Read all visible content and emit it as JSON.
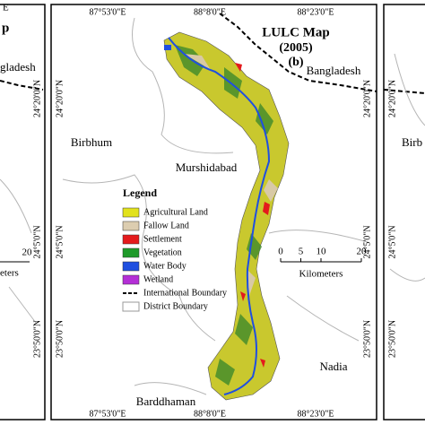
{
  "left_panel": {
    "top_lon": "E",
    "title_fragment": "p",
    "country_fragment": "gladesh",
    "lat_labels": [
      "24°20'0\"N",
      "24°5'0\"N",
      "23°50'0\"N"
    ],
    "scale_number": "20",
    "scale_unit_fragment": "eters"
  },
  "main_map": {
    "title": "LULC Map",
    "year": "(2005)",
    "panel": "(b)",
    "top_lon": [
      "87°53'0\"E",
      "88°8'0\"E",
      "88°23'0\"E"
    ],
    "bottom_lon": [
      "87°53'0\"E",
      "88°8'0\"E",
      "88°23'0\"E"
    ],
    "left_lat": [
      "24°20'0\"N",
      "24°5'0\"N",
      "23°50'0\"N"
    ],
    "right_lat": [
      "24°20'0\"N",
      "24°5'0\"N",
      "23°50'0\"N"
    ],
    "places": {
      "bangladesh": "Bangladesh",
      "birbhum": "Birbhum",
      "murshidabad": "Murshidabad",
      "nadia": "Nadia",
      "barddhaman": "Barddhaman"
    },
    "legend": {
      "title": "Legend",
      "items": [
        {
          "label": "Agricultural Land",
          "color": "#e2e21c"
        },
        {
          "label": "Fallow Land",
          "color": "#dccdb0"
        },
        {
          "label": "Settlement",
          "color": "#e41a1c"
        },
        {
          "label": "Vegetation",
          "color": "#1f9a2a"
        },
        {
          "label": "Water Body",
          "color": "#1f4fe0"
        },
        {
          "label": "Wetland",
          "color": "#b42fd6"
        }
      ],
      "international_boundary": "International Boundary",
      "district_boundary": "District Boundary"
    },
    "scale_bar": {
      "ticks": [
        0,
        5,
        10,
        20
      ],
      "unit": "Kilometers"
    }
  },
  "right_panel": {
    "district_fragment": "Birb",
    "lat_labels": [
      "24°20'0\"N",
      "24°5'0\"N",
      "23°50'0\"N"
    ]
  }
}
